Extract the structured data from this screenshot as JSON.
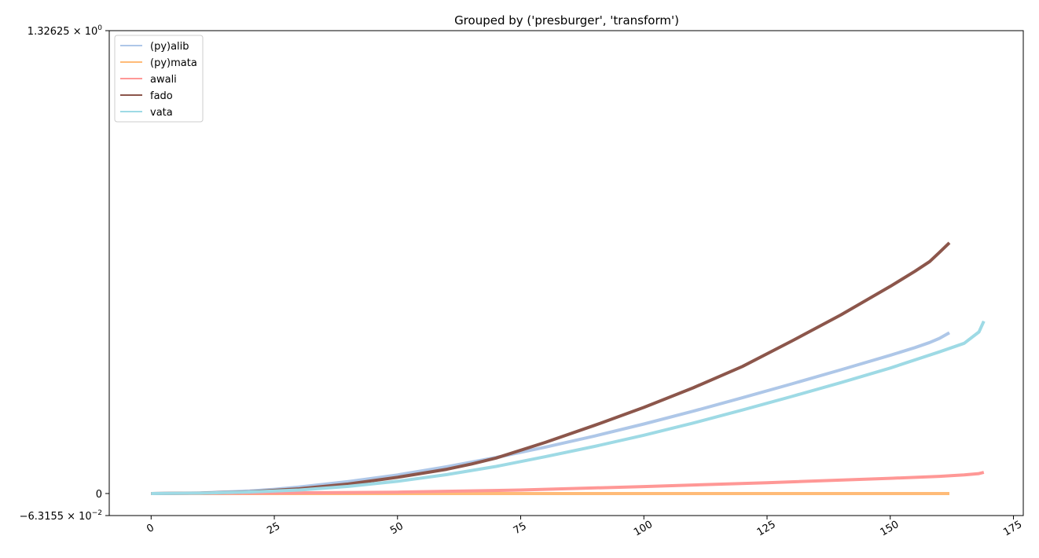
{
  "chart_data": {
    "type": "line",
    "title": "Grouped by ('presburger', 'transform')",
    "xlabel": "",
    "ylabel": "",
    "xlim": [
      -8.5,
      177
    ],
    "ylim": [
      -0.063155,
      1.32625
    ],
    "x_ticks": [
      0,
      25,
      50,
      75,
      100,
      125,
      150,
      175
    ],
    "x_tick_labels": [
      "0",
      "25",
      "50",
      "75",
      "100",
      "125",
      "150",
      "175"
    ],
    "y_ticks": [
      {
        "value": 1.32625,
        "mantissa": "1.32625",
        "exponent": "0"
      },
      {
        "value": 0,
        "mantissa": "0",
        "exponent": ""
      },
      {
        "value": -0.063155,
        "mantissa": "−6.3155",
        "exponent": "−2"
      }
    ],
    "y_tick_base": "× 10",
    "grid": false,
    "legend_position": "top-left",
    "series": [
      {
        "name": "(py)alib",
        "color": "#aec7e8",
        "x": [
          0,
          10,
          20,
          25,
          30,
          40,
          50,
          60,
          70,
          80,
          90,
          100,
          110,
          120,
          130,
          140,
          150,
          155,
          158,
          160,
          162
        ],
        "y": [
          0,
          0.0018,
          0.0072,
          0.0121,
          0.0185,
          0.0344,
          0.0533,
          0.0768,
          0.1033,
          0.133,
          0.1647,
          0.1993,
          0.2358,
          0.2744,
          0.314,
          0.3545,
          0.3961,
          0.418,
          0.4326,
          0.4447,
          0.4607
        ]
      },
      {
        "name": "(py)mata",
        "color": "#ffbb78",
        "x": [
          0,
          25,
          50,
          75,
          100,
          125,
          150,
          162
        ],
        "y": [
          0,
          0,
          0,
          0,
          0,
          0,
          0,
          0
        ]
      },
      {
        "name": "awali",
        "color": "#ff9896",
        "x": [
          0,
          25,
          50,
          75,
          100,
          125,
          150,
          160,
          165,
          168,
          169
        ],
        "y": [
          0,
          0.0012,
          0.004,
          0.01,
          0.02,
          0.031,
          0.0435,
          0.0493,
          0.0535,
          0.0572,
          0.0608
        ]
      },
      {
        "name": "fado",
        "color": "#8c564b",
        "x": [
          0,
          10,
          20,
          30,
          40,
          50,
          60,
          65,
          70,
          80,
          90,
          100,
          110,
          120,
          130,
          140,
          150,
          155,
          158,
          160,
          162
        ],
        "y": [
          0,
          0.0012,
          0.0049,
          0.0133,
          0.0272,
          0.0465,
          0.0695,
          0.0845,
          0.1017,
          0.1464,
          0.1954,
          0.2466,
          0.3028,
          0.364,
          0.4368,
          0.512,
          0.5936,
          0.6368,
          0.6647,
          0.691,
          0.7184
        ]
      },
      {
        "name": "vata",
        "color": "#9edae5",
        "x": [
          0,
          10,
          20,
          30,
          40,
          50,
          60,
          70,
          80,
          90,
          100,
          110,
          120,
          130,
          140,
          150,
          160,
          165,
          168,
          169
        ],
        "y": [
          0,
          0.0011,
          0.0043,
          0.0101,
          0.0203,
          0.035,
          0.0541,
          0.0775,
          0.1055,
          0.1351,
          0.1669,
          0.2018,
          0.2392,
          0.278,
          0.3179,
          0.3595,
          0.406,
          0.4305,
          0.4629,
          0.4938
        ]
      }
    ]
  }
}
